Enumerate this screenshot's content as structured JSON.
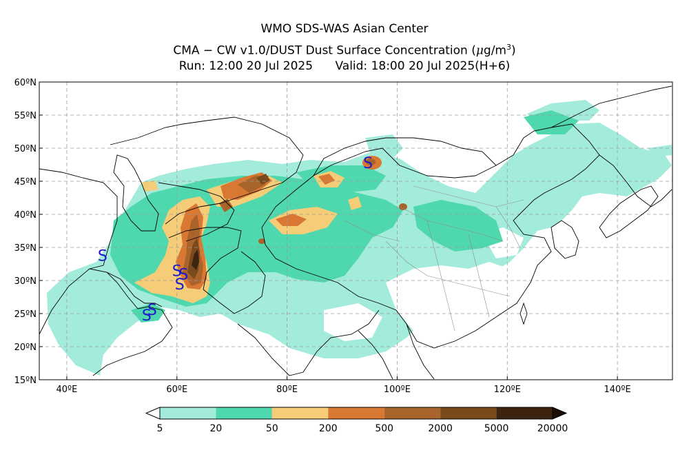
{
  "header": {
    "line1": "WMO SDS-WAS Asian Center",
    "line2_prefix": "CMA − CW v1.0/DUST Dust Surface Concentration (",
    "line2_unit_mu": "μ",
    "line2_unit_rest": "g/m",
    "line2_unit_sup": "3",
    "line2_suffix": ")",
    "run": "Run: 12:00 20 Jul 2025",
    "valid": "Valid: 18:00 20 Jul 2025(H+6)"
  },
  "map": {
    "lon_range": [
      35,
      150
    ],
    "lat_range": [
      15,
      60
    ],
    "lon_ticks": [
      {
        "value": 40,
        "label": "40ºE"
      },
      {
        "value": 60,
        "label": "60ºE"
      },
      {
        "value": 80,
        "label": "80ºE"
      },
      {
        "value": 100,
        "label": "100ºE"
      },
      {
        "value": 120,
        "label": "120ºE"
      },
      {
        "value": 140,
        "label": "140ºE"
      }
    ],
    "lat_ticks": [
      {
        "value": 60,
        "label": "60ºN"
      },
      {
        "value": 55,
        "label": "55ºN"
      },
      {
        "value": 50,
        "label": "50ºN"
      },
      {
        "value": 45,
        "label": "45ºN"
      },
      {
        "value": 40,
        "label": "40ºN"
      },
      {
        "value": 35,
        "label": "35ºN"
      },
      {
        "value": 30,
        "label": "30ºN"
      },
      {
        "value": 25,
        "label": "25ºN"
      },
      {
        "value": 20,
        "label": "20ºN"
      },
      {
        "value": 15,
        "label": "15ºN"
      }
    ],
    "grid": true,
    "station_symbol": "S",
    "station_symbol_color": "#1a1acc",
    "stations": [
      {
        "lon": 46.5,
        "lat": 33.8
      },
      {
        "lon": 60.0,
        "lat": 31.5
      },
      {
        "lon": 61.2,
        "lat": 31.0
      },
      {
        "lon": 60.5,
        "lat": 29.5
      },
      {
        "lon": 54.5,
        "lat": 24.8
      },
      {
        "lon": 55.5,
        "lat": 25.6
      },
      {
        "lon": 94.7,
        "lat": 47.8
      }
    ]
  },
  "colorbar": {
    "colors": [
      "#a3ecdc",
      "#4fd8ad",
      "#f5cc78",
      "#d97832",
      "#a8642a",
      "#7a4a1c",
      "#3d2410"
    ],
    "labels": [
      "5",
      "20",
      "50",
      "200",
      "500",
      "2000",
      "5000",
      "20000"
    ],
    "under_color": "#ffffff",
    "over_color": "#1c0e04"
  }
}
